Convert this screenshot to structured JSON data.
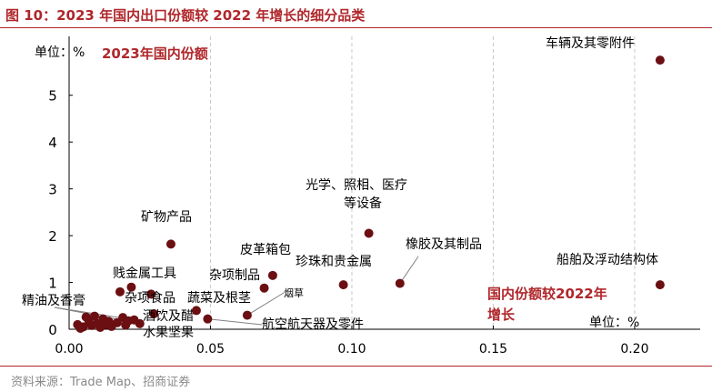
{
  "figure_title": "图 10：2023 年国内出口份额较 2022 年增长的细分品类",
  "source": "资料来源：Trade Map、招商证券",
  "colors": {
    "accent": "#b0272b",
    "point": "#6b0f12",
    "grid": "#c9c9c9",
    "leader": "#808080"
  },
  "chart_data": {
    "type": "scatter",
    "xlim": [
      0,
      0.21
    ],
    "ylim": [
      0,
      5.5
    ],
    "xticks": [
      "0.00",
      "0.05",
      "0.10",
      "0.15",
      "0.20"
    ],
    "xtick_values": [
      0,
      0.05,
      0.1,
      0.15,
      0.2
    ],
    "yticks": [
      "0",
      "1",
      "2",
      "3",
      "4",
      "5"
    ],
    "ytick_values": [
      0,
      1,
      2,
      3,
      4,
      5
    ],
    "grid": "dashed vertical",
    "y_unit_label": "单位：%",
    "y_axis_name": "2023年国内份额",
    "x_unit_label": "单位：%",
    "x_axis_name_lines": [
      "国内份额较2022年",
      "增长"
    ],
    "labeled_points": [
      {
        "label": "车辆及其零附件",
        "x": 0.209,
        "y": 5.75
      },
      {
        "label": "船舶及浮动结构体",
        "x": 0.209,
        "y": 0.95
      },
      {
        "label": "光学、照相、医疗|等设备",
        "x": 0.106,
        "y": 2.05
      },
      {
        "label": "橡胶及其制品",
        "x": 0.117,
        "y": 0.98
      },
      {
        "label": "珍珠和贵金属",
        "x": 0.097,
        "y": 0.95
      },
      {
        "label": "皮革箱包",
        "x": 0.072,
        "y": 1.15
      },
      {
        "label": "杂项制品",
        "x": 0.069,
        "y": 0.88
      },
      {
        "label": "矿物产品",
        "x": 0.036,
        "y": 1.82
      },
      {
        "label": "贱金属工具",
        "x": 0.022,
        "y": 0.9
      },
      {
        "label": "杂项食品",
        "x": 0.029,
        "y": 0.75
      },
      {
        "label": "蔬菜及根茎",
        "x": 0.045,
        "y": 0.4
      },
      {
        "label": "烟草",
        "x": 0.063,
        "y": 0.3
      },
      {
        "label": "航空航天器及零件",
        "x": 0.049,
        "y": 0.22
      },
      {
        "label": "精油及香膏",
        "x": 0.023,
        "y": 0.2
      },
      {
        "label": "酒饮及醋",
        "x": 0.03,
        "y": 0.33
      },
      {
        "label": "水果坚果",
        "x": 0.025,
        "y": 0.12
      }
    ],
    "cluster_points": [
      {
        "x": 0.003,
        "y": 0.1
      },
      {
        "x": 0.005,
        "y": 0.05
      },
      {
        "x": 0.007,
        "y": 0.18
      },
      {
        "x": 0.008,
        "y": 0.08
      },
      {
        "x": 0.01,
        "y": 0.12
      },
      {
        "x": 0.011,
        "y": 0.04
      },
      {
        "x": 0.012,
        "y": 0.22
      },
      {
        "x": 0.013,
        "y": 0.1
      },
      {
        "x": 0.014,
        "y": 0.17
      },
      {
        "x": 0.015,
        "y": 0.06
      },
      {
        "x": 0.017,
        "y": 0.14
      },
      {
        "x": 0.018,
        "y": 0.8
      },
      {
        "x": 0.019,
        "y": 0.25
      },
      {
        "x": 0.02,
        "y": 0.09
      },
      {
        "x": 0.021,
        "y": 0.18
      },
      {
        "x": 0.006,
        "y": 0.26
      },
      {
        "x": 0.004,
        "y": 0.02
      },
      {
        "x": 0.009,
        "y": 0.28
      }
    ]
  }
}
